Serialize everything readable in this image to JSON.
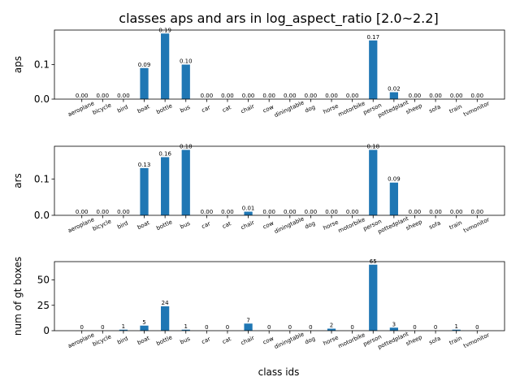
{
  "figure": {
    "title": "classes aps and ars in log_aspect_ratio [2.0~2.2]",
    "xlabel": "class ids"
  },
  "chart_data": [
    {
      "type": "bar",
      "ylabel": "aps",
      "categories": [
        "aeroplane",
        "bicycle",
        "bird",
        "boat",
        "bottle",
        "bus",
        "car",
        "cat",
        "chair",
        "cow",
        "diningtable",
        "dog",
        "horse",
        "motorbike",
        "person",
        "pottedplant",
        "sheep",
        "sofa",
        "train",
        "tvmonitor"
      ],
      "values": [
        0.0,
        0.0,
        0.0,
        0.09,
        0.19,
        0.1,
        0.0,
        0.0,
        0.0,
        0.0,
        0.0,
        0.0,
        0.0,
        0.0,
        0.17,
        0.02,
        0.0,
        0.0,
        0.0,
        0.0
      ],
      "labels": [
        "0.00",
        "0.00",
        "0.00",
        "0.09",
        "0.19",
        "0.10",
        "0.00",
        "0.00",
        "0.00",
        "0.00",
        "0.00",
        "0.00",
        "0.00",
        "0.00",
        "0.17",
        "0.02",
        "0.00",
        "0.00",
        "0.00",
        "0.00"
      ],
      "ylim": [
        0,
        0.2
      ],
      "yticks": [
        0,
        0.1
      ],
      "ytick_labels": [
        "0.0",
        "0.1"
      ],
      "color": "#1f77b4"
    },
    {
      "type": "bar",
      "ylabel": "ars",
      "categories": [
        "aeroplane",
        "bicycle",
        "bird",
        "boat",
        "bottle",
        "bus",
        "car",
        "cat",
        "chair",
        "cow",
        "diningtable",
        "dog",
        "horse",
        "motorbike",
        "person",
        "pottedplant",
        "sheep",
        "sofa",
        "train",
        "tvmonitor"
      ],
      "values": [
        0.0,
        0.0,
        0.0,
        0.13,
        0.16,
        0.18,
        0.0,
        0.0,
        0.01,
        0.0,
        0.0,
        0.0,
        0.0,
        0.0,
        0.18,
        0.09,
        0.0,
        0.0,
        0.0,
        0.0
      ],
      "labels": [
        "0.00",
        "0.00",
        "0.00",
        "0.13",
        "0.16",
        "0.18",
        "0.00",
        "0.00",
        "0.01",
        "0.00",
        "0.00",
        "0.00",
        "0.00",
        "0.00",
        "0.18",
        "0.09",
        "0.00",
        "0.00",
        "0.00",
        "0.00"
      ],
      "ylim": [
        0,
        0.19
      ],
      "yticks": [
        0,
        0.1
      ],
      "ytick_labels": [
        "0.0",
        "0.1"
      ],
      "color": "#1f77b4"
    },
    {
      "type": "bar",
      "ylabel": "num of gt boxes",
      "categories": [
        "aeroplane",
        "bicycle",
        "bird",
        "boat",
        "bottle",
        "bus",
        "car",
        "cat",
        "chair",
        "cow",
        "diningtable",
        "dog",
        "horse",
        "motorbike",
        "person",
        "pottedplant",
        "sheep",
        "sofa",
        "train",
        "tvmonitor"
      ],
      "values": [
        0,
        0,
        1,
        5,
        24,
        1,
        0,
        0,
        7,
        0,
        0,
        0,
        2,
        0,
        65,
        3,
        0,
        0,
        1,
        0
      ],
      "labels": [
        "0",
        "0",
        "1",
        "5",
        "24",
        "1",
        "0",
        "0",
        "7",
        "0",
        "0",
        "0",
        "2",
        "0",
        "65",
        "3",
        "0",
        "0",
        "1",
        "0"
      ],
      "ylim": [
        0,
        68
      ],
      "yticks": [
        0,
        25,
        50
      ],
      "ytick_labels": [
        "0",
        "25",
        "50"
      ],
      "color": "#1f77b4"
    }
  ]
}
